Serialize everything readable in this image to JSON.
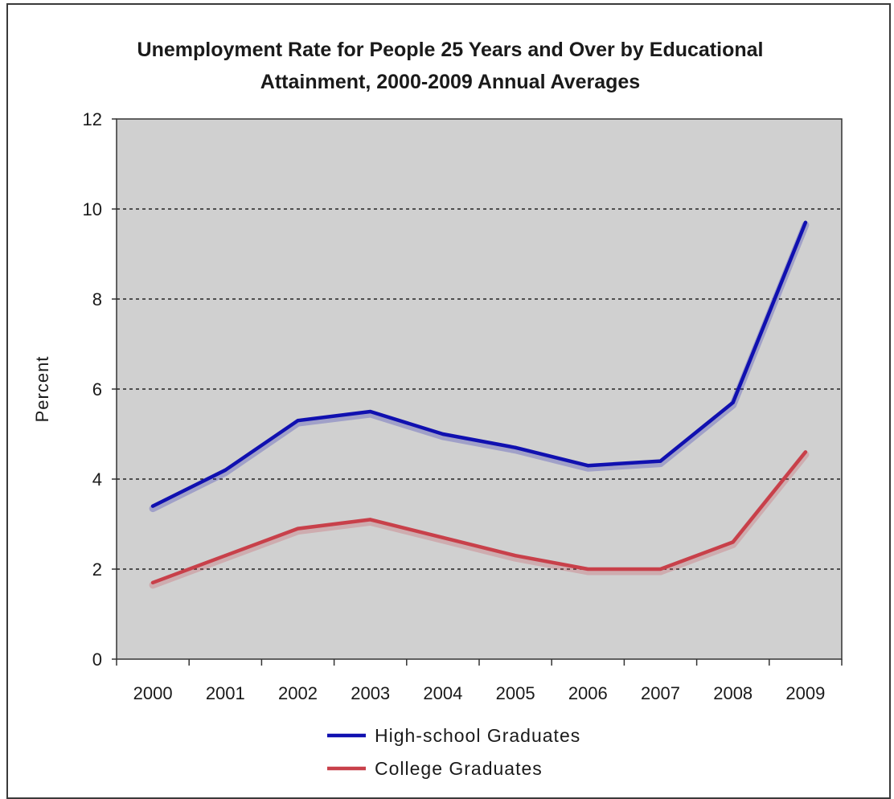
{
  "chart_data": {
    "type": "line",
    "title": "Unemployment Rate for People 25 Years and Over by Educational Attainment, 2000-2009 Annual Averages",
    "title_lines": [
      "Unemployment Rate for People 25 Years and Over by Educational",
      "Attainment, 2000-2009 Annual Averages"
    ],
    "ylabel": "Percent",
    "xlabel": "",
    "categories": [
      "2000",
      "2001",
      "2002",
      "2003",
      "2004",
      "2005",
      "2006",
      "2007",
      "2008",
      "2009"
    ],
    "ylim": [
      0,
      12
    ],
    "yticks": [
      0,
      2,
      4,
      6,
      8,
      10,
      12
    ],
    "grid": "horizontal dashed",
    "legend_position": "bottom",
    "plot_background": "#d0d0d0",
    "series": [
      {
        "name": "High-school Graduates",
        "color": "#1010b0",
        "values": [
          3.4,
          4.2,
          5.3,
          5.5,
          5.0,
          4.7,
          4.3,
          4.4,
          5.7,
          9.7
        ]
      },
      {
        "name": "College Graduates",
        "color": "#c8404a",
        "values": [
          1.7,
          2.3,
          2.9,
          3.1,
          2.7,
          2.3,
          2.0,
          2.0,
          2.6,
          4.6
        ]
      }
    ]
  }
}
